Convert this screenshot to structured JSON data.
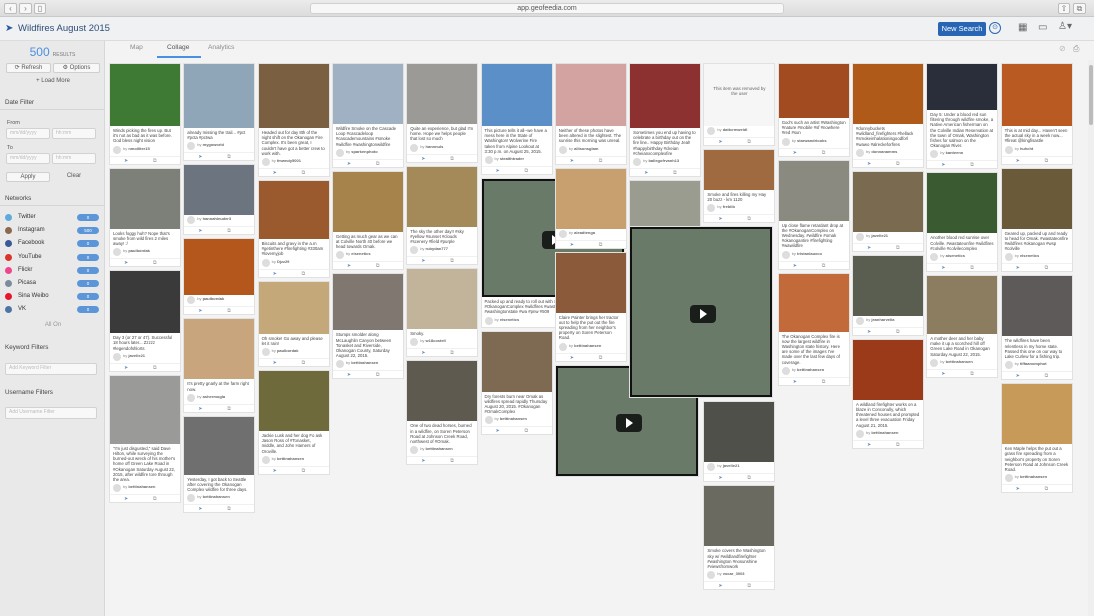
{
  "browser": {
    "url": "app.geofeedia.com"
  },
  "app": {
    "title": "Wildfires August 2015",
    "new_search": "New Search"
  },
  "sidebar": {
    "count": "500",
    "count_label": "RESULTS",
    "refresh": "Refresh",
    "options": "Options",
    "load_more": "+ Load More",
    "date_filter": "Date Filter",
    "from": "From",
    "to": "To",
    "date_ph": "mm/dd/yyyy",
    "time_ph": "hh:mm",
    "apply": "Apply",
    "clear": "Clear",
    "networks": "Networks",
    "network_list": [
      {
        "name": "Twitter",
        "count": "0",
        "color": "#5ea9dd"
      },
      {
        "name": "Instagram",
        "count": "500",
        "color": "#8a6a4f"
      },
      {
        "name": "Facebook",
        "count": "0",
        "color": "#3b5998"
      },
      {
        "name": "YouTube",
        "count": "0",
        "color": "#d9352b"
      },
      {
        "name": "Flickr",
        "count": "0",
        "color": "#f0448c"
      },
      {
        "name": "Picasa",
        "count": "0",
        "color": "#7b8c9e"
      },
      {
        "name": "Sina Weibo",
        "count": "0",
        "color": "#e6162d"
      },
      {
        "name": "VK",
        "count": "0",
        "color": "#4c75a3"
      }
    ],
    "all_on": "All On",
    "keyword_filters": "Keyword Filters",
    "keyword_ph": "Add Keyword Filter",
    "username_filters": "Username Filters",
    "username_ph": "Add Username Filter"
  },
  "tabs": [
    "Map",
    "Collage",
    "Analytics"
  ],
  "columns": [
    [
      {
        "cap": "Winds picking the fires up. But it's not as bad as it was before. God bless night vision",
        "user": "nmolliter15",
        "color": "#3f7a35"
      },
      {
        "cap": "Looks foggy huh? Nope that's smoke from wild fires 2 miles away! :/",
        "user": "paulbordak",
        "color": "#7d8078"
      },
      {
        "cap": "Day 3 (or 27 or 47). Successful 18 hours later... Zzzzz #legendofshlorts",
        "user": "javelle21",
        "color": "#3a3a3a"
      },
      {
        "cap": "\"I'm just disgusted,\" said Dave Hilton, while surveying the burned-out wreck of his mother's home off Green Lake Road in #Okanogan Saturday August 22, 2015, after wildfire tore through the area.",
        "user": "bettinahansen",
        "color": "#9a9a98"
      }
    ],
    [
      {
        "cap": "already missing the trail... #pct #pcta #pctwa",
        "user": "mygoworld",
        "color": "#8fa6b8"
      },
      {
        "cap": "",
        "user": "hannahleuder3",
        "color": "#6c7480"
      },
      {
        "cap": "",
        "user": "paulbordak",
        "color": "#b4571c"
      },
      {
        "cap": "It's pretty gnarly at the farm right now.",
        "user": "ashermogla",
        "color": "#c8a57c"
      },
      {
        "cap": "Yesterday, I got back to Seattle after covering the Okanogan Complex wildfire for three days.",
        "user": "bettinahansen",
        "color": "#6f6f6f"
      }
    ],
    [
      {
        "cap": "Headed out for day 8th of the night shift on the Okanogan Fire Complex. It's been great, I couldn't have got a better crew to work with.",
        "user": "fmwndy5001",
        "color": "#7a6040"
      },
      {
        "cap": "Biscuits and gravy in the a.m #getinthere #firefighting #330am #lovemyjob",
        "user": "Djzz29",
        "color": "#9b5a2e"
      },
      {
        "cap": "Oh smoke! Go away and please let it rain!",
        "user": "paulbordak",
        "color": "#c4a87a"
      },
      {
        "cap": "Jackie Lusk and her dog Fo ask Jason Ross of #Tonasket, middle, and John Hamers of Oroville.",
        "user": "bettinahansen",
        "color": "#6e6a3c"
      }
    ],
    [
      {
        "cap": "Wildfire Smoke on the Cascade Loop #cascadeloop #cascademountains #smoke #wildfire #washingtonwildfire",
        "user": "sparkenphoto",
        "color": "#9fb1c2"
      },
      {
        "cap": "Getting as much gear as we can at Colville North 40 before we head towards Omak.",
        "user": "eisenetics",
        "color": "#a5834a"
      },
      {
        "cap": "Stumps smolder along McLaughlin Canyon between Tonasket and Riverside, Okanogan County, Saturday August 22, 2015.",
        "user": "bettinahansen",
        "color": "#807870"
      }
    ],
    [
      {
        "cap": "Quite an experience, but glad I'm home. Hope we helps people that lost so much",
        "user": "hannnuls",
        "color": "#9c9a96"
      },
      {
        "cap": "The sky the other day!! #sky #yellow #sunset #clouds #scenery #field #purple",
        "user": "rubydan777",
        "color": "#a48a58"
      },
      {
        "cap": "Smoky.",
        "user": "w18costell",
        "color": "#c2b49a"
      },
      {
        "cap": "One of two dead horses, burned in a wildfire, on Soren Peterson Road at Johnson Creek Road, northwest of #Omak.",
        "user": "bettinahansen",
        "color": "#5f5a50"
      }
    ],
    [
      {
        "cap": "This picture tells it all--we have a mess here in the State of Washington! Wolverine Fire taken from Alpine Lookout at 3:30 p.m. on August 25, 2015.",
        "user": "stealthtrader",
        "color": "#5b8fc8"
      },
      {
        "cap": "Dry forests burn near Omak as wildfires spread rapidly Thursday August 20, 2015. #Okanogan #OmakComplex",
        "user": "bettinahansen",
        "color": "#7e6a52"
      }
    ],
    [
      {
        "cap": "Neither of these photos have been altered in the slightest. The sunrise this morning was unreal.",
        "user": "allisonsglam",
        "color": "#d2a3a0"
      },
      {
        "cap": "",
        "user": "aleadtenga",
        "color": "#c8a070"
      },
      {
        "cap": "Claire Painter brings her tractor out to help the put out the fire spreading from her neighbor's property on Soren Peterson Road.",
        "user": "bettinahansen",
        "color": "#8a5a3a"
      }
    ],
    [
      {
        "cap": "Sometimes you end up having to celebrate a birthday out on the fire line.. Happy Birthday Jeal! #happybirthday #ckeian #cheianxcomplexfire",
        "user": "ballegofrvanh13",
        "color": "#8c3030"
      },
      {
        "cap": "Fire Camp. They don't do it for the glamour, or the glory... They do it for each other.",
        "user": "pjcardano",
        "color": "#9a9c90"
      },
      {
        "cap": "What a week. Over 600k acres burned. The largest Wildfire in state history.",
        "user": "freyjanis",
        "color": "#6a4c5a"
      }
    ],
    [
      {
        "cap": "This item was removed by the user",
        "user": "dattcrmweidl",
        "color": "#f6f6f6"
      },
      {
        "cap": "Smoke and fires killing my Hay 20 buzz - km 1120",
        "user": "freblib",
        "color": "#a06a40"
      },
      {
        "cap": "",
        "user": "javelle21",
        "color": "#50504a"
      },
      {
        "cap": "Smoke covers the Washington sky w/ #wildlandfirefighter #washington #nosunshine #viewsfromwork",
        "user": "vocar_3003",
        "color": "#6a6a60"
      }
    ],
    [
      {
        "cap": "God's such an artist #Washington #nature #mobile #sf #nowhere #red #sun",
        "user": "starwandriooks",
        "color": "#a24a20"
      },
      {
        "cap": "Up close flame retardant drop at the #OkanoganComplex on Wednesday. #wildfire #omak #okanogantire #firefighting #wawildfire",
        "user": "tristanlauxco",
        "color": "#8a8a80"
      },
      {
        "cap": "The Okanogan Complex fire is now the largest wildfire in Washington state history. Here are some of the images I've made over the last few days of coverage.",
        "user": "bettinahansen",
        "color": "#c26a3a"
      }
    ],
    [
      {
        "cap": "#donnybuckets #wildland_firefighters #hellack #smokeinhalationisgoodforl #wawo #alreckeforfires",
        "user": "donnanamms",
        "color": "#b05a1a"
      },
      {
        "cap": "",
        "user": "javelle21",
        "color": "#7a6a50"
      },
      {
        "cap": "",
        "user": "jeanharvella",
        "color": "#5a5e50"
      },
      {
        "cap": "A wildland firefighter works on a blaze in Conconully, which threatened houses and prompted a level three evacuation Friday August 21, 2015.",
        "user": "bettinahansen",
        "color": "#9a3a18"
      }
    ],
    [
      {
        "cap": "Day 5: Under a blood red sun filtering through wildfire smoke, a Native American fisherman on the Colville Indian Reservation at the town of Omak, Washington fishes for salmon on the Okanogan River.",
        "user": "kanteenn",
        "color": "#2a2e3a"
      },
      {
        "cap": "Another blood red sunrise over Colville. #wastateonfire #wildfires #colville #colvilecomplex",
        "user": "aisenetics",
        "color": "#3a5a32"
      },
      {
        "cap": "A mother deer and her baby make it up a scorched hill off Green Lake Road in Okanogan Saturday August 22, 2015.",
        "user": "bettinahansen",
        "color": "#8c7c60"
      }
    ],
    [
      {
        "cap": "This is at mid day... Haven't seen the actual sky in a week now... #fireat @kingfisastle",
        "user": "huhcht",
        "color": "#b85a22"
      },
      {
        "cap": "Geared up, packed up and ready to head for Omak. #wastateonfire #wildfires #okanogan #wsp #colville",
        "user": "eisenetics",
        "color": "#6a5a3a"
      },
      {
        "cap": "The wildfires have been relentless in my home state. Passed this one on our way to Lake Curlew for a fishing trip.",
        "user": "tiffaanomphot",
        "color": "#5e5a5a"
      },
      {
        "cap": "Ken Maple helps the put out a grass fire spreading from a neighbor's property on Soren Peterson Road at Johnson Creek Road.",
        "user": "bettinahansen",
        "color": "#c89a5a"
      }
    ]
  ],
  "videos": [
    {
      "caption": "Packed up and ready to roll out with @ogdirtyballz #colville #omak #OkanoganComplex #wildfires #wastateonfire #wildfires #eastemwa #washingtonstate #wa #pnw #509",
      "user": "eisenetics"
    },
    {
      "caption": "",
      "user": ""
    },
    {
      "caption": "",
      "user": ""
    }
  ]
}
